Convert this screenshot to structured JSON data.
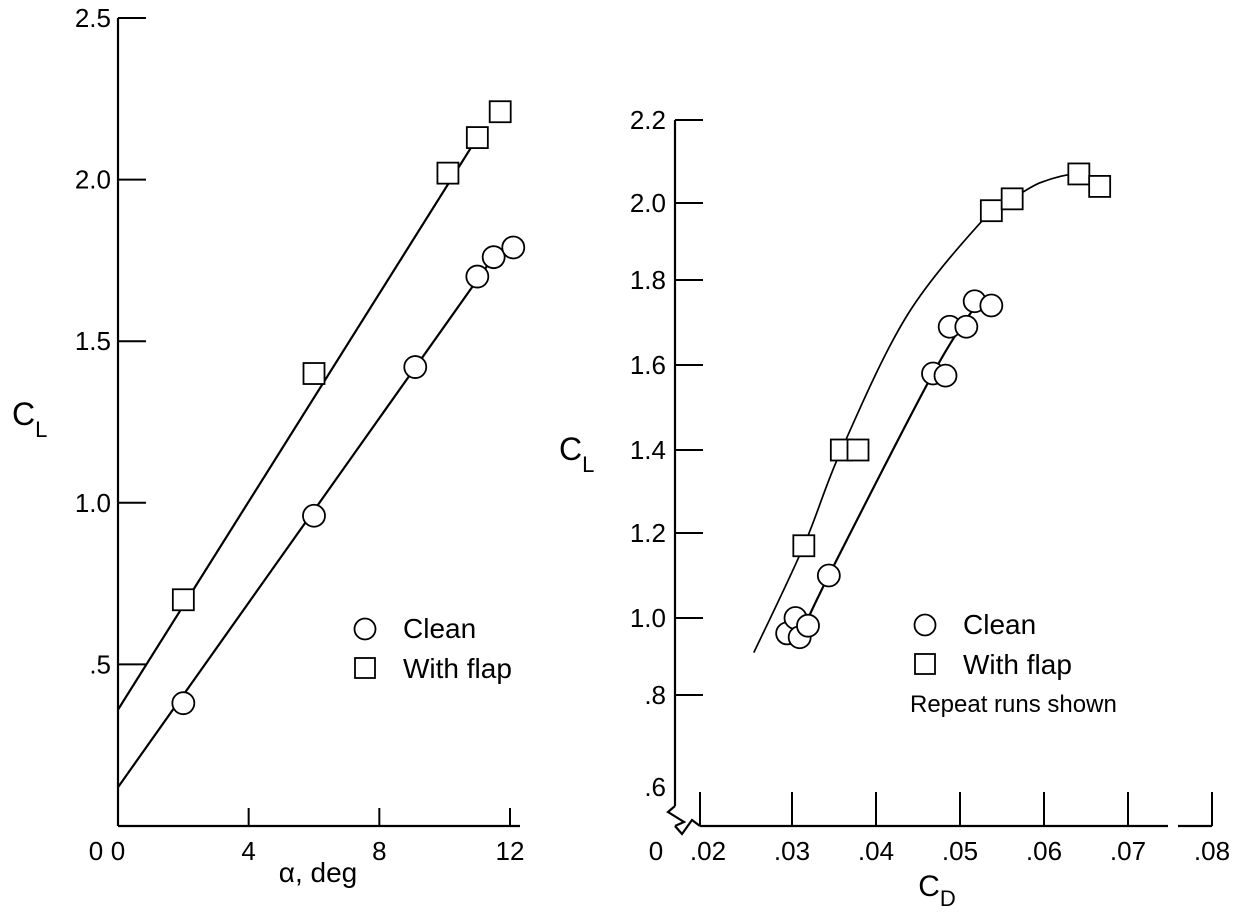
{
  "chart_data": [
    {
      "type": "scatter",
      "xlabel": "α, deg",
      "ylabel": "C",
      "ylabel_sub": "L",
      "xlim": [
        0,
        12
      ],
      "ylim": [
        0,
        2.5
      ],
      "xticks": [
        "0",
        "4",
        "8",
        "12"
      ],
      "yticks": [
        ".5",
        "1.0",
        "1.5",
        "2.0",
        "2.5"
      ],
      "grid": false,
      "legend_position": "lower-right",
      "series": [
        {
          "name": "Clean",
          "marker": "circle",
          "points": [
            [
              2.0,
              0.38
            ],
            [
              6.0,
              0.96
            ],
            [
              9.1,
              1.42
            ],
            [
              11.0,
              1.7
            ],
            [
              11.5,
              1.76
            ],
            [
              12.1,
              1.79
            ]
          ],
          "fit_line": [
            [
              0,
              0.12
            ],
            [
              11.7,
              1.79
            ]
          ]
        },
        {
          "name": "With flap",
          "marker": "square",
          "points": [
            [
              2.0,
              0.7
            ],
            [
              6.0,
              1.4
            ],
            [
              10.1,
              2.02
            ],
            [
              11.0,
              2.13
            ],
            [
              11.7,
              2.21
            ]
          ],
          "fit_line": [
            [
              0,
              0.36
            ],
            [
              11.0,
              2.13
            ]
          ]
        }
      ]
    },
    {
      "type": "scatter",
      "xlabel": "C",
      "xlabel_sub": "D",
      "ylabel": "C",
      "ylabel_sub": "L",
      "xlim": [
        0.02,
        0.08
      ],
      "ylim": [
        0.6,
        2.2
      ],
      "xticks": [
        ".02",
        ".03",
        ".04",
        ".05",
        ".06",
        ".07",
        ".08"
      ],
      "yticks": [
        ".6",
        ".8",
        "1.0",
        "1.2",
        "1.4",
        "1.6",
        "1.8",
        "2.0",
        "2.2"
      ],
      "origin_label": "0",
      "axis_breaks": true,
      "grid": false,
      "legend_position": "lower-right",
      "note": "Repeat runs shown",
      "series": [
        {
          "name": "Clean",
          "marker": "circle",
          "points": [
            [
              0.0295,
              0.96
            ],
            [
              0.0305,
              1.0
            ],
            [
              0.031,
              0.95
            ],
            [
              0.032,
              0.98
            ],
            [
              0.0345,
              1.1
            ],
            [
              0.047,
              1.58
            ],
            [
              0.0485,
              1.575
            ],
            [
              0.049,
              1.69
            ],
            [
              0.051,
              1.69
            ],
            [
              0.052,
              1.75
            ],
            [
              0.054,
              1.74
            ]
          ],
          "fit_curve": [
            [
              0.031,
              0.95
            ],
            [
              0.0345,
              1.1
            ],
            [
              0.047,
              1.58
            ],
            [
              0.0525,
              1.75
            ]
          ]
        },
        {
          "name": "With flap",
          "marker": "square",
          "points": [
            [
              0.0315,
              1.17
            ],
            [
              0.036,
              1.4
            ],
            [
              0.038,
              1.4
            ],
            [
              0.054,
              1.98
            ],
            [
              0.0565,
              2.01
            ],
            [
              0.0645,
              2.07
            ],
            [
              0.067,
              2.04
            ]
          ],
          "fit_curve": [
            [
              0.0255,
              0.91
            ],
            [
              0.0315,
              1.17
            ],
            [
              0.036,
              1.4
            ],
            [
              0.044,
              1.72
            ],
            [
              0.054,
              1.98
            ],
            [
              0.0565,
              2.01
            ],
            [
              0.06,
              2.05
            ],
            [
              0.0645,
              2.07
            ],
            [
              0.067,
              2.04
            ]
          ]
        }
      ]
    }
  ]
}
